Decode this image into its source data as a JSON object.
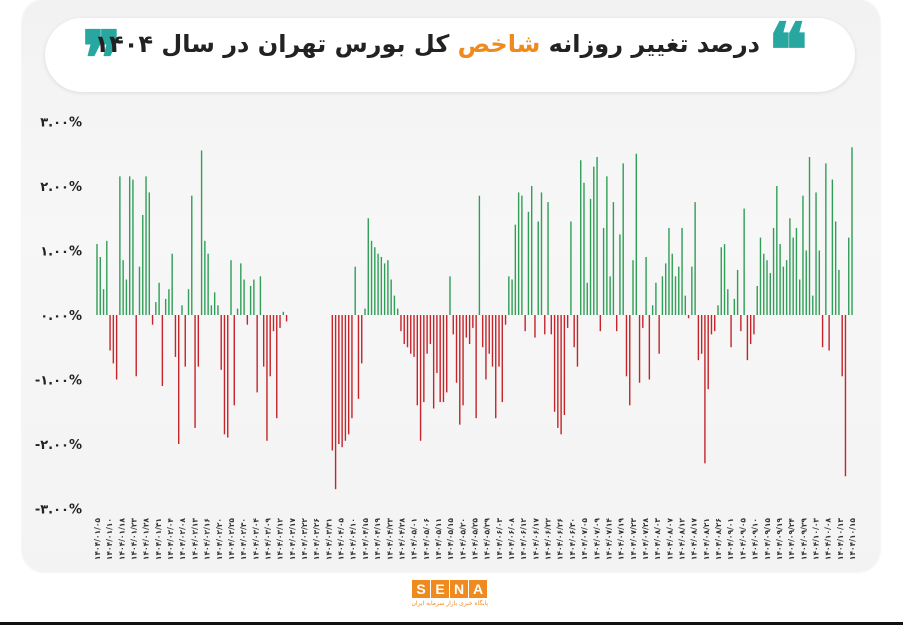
{
  "title": {
    "before": "درصد تغییر روزانه ",
    "highlight": "شاخص",
    "after": " کل بورس تهران در سال ۱۴۰۴"
  },
  "logo": {
    "letters": [
      "S",
      "E",
      "N",
      "A"
    ],
    "subtitle": "پایگاه خبری بازار سرمایه ایران"
  },
  "colors": {
    "positive": "#2f9e56",
    "negative": "#c4242a",
    "accent": "#ef8a1f",
    "quote": "#27a7a0"
  },
  "chart_data": {
    "type": "bar",
    "title": "درصد تغییر روزانه شاخص کل بورس تهران در سال ۱۴۰۴",
    "xlabel": "",
    "ylabel": "",
    "ylim": [
      -3,
      3
    ],
    "y_ticks": [
      3,
      2,
      1,
      0,
      -1,
      -2,
      -3
    ],
    "y_tick_labels": [
      "۳.۰۰%",
      "۲.۰۰%",
      "۱.۰۰%",
      "۰.۰۰%",
      "-۱.۰۰%",
      "-۲.۰۰%",
      "-۳.۰۰%"
    ],
    "grid": false,
    "x_tick_labels": [
      "۱۴۰۴/۰۱/۰۵",
      "۱۴۰۴/۰۱/۱۰",
      "۱۴۰۴/۰۱/۱۸",
      "۱۴۰۴/۰۱/۲۳",
      "۱۴۰۴/۰۱/۲۸",
      "۱۴۰۴/۰۱/۳۱",
      "۱۴۰۴/۰۲/۰۴",
      "۱۴۰۴/۰۲/۰۸",
      "۱۴۰۴/۰۲/۱۳",
      "۱۴۰۴/۰۲/۱۶",
      "۱۴۰۴/۰۲/۲۰",
      "۱۴۰۴/۰۲/۲۵",
      "۱۴۰۴/۰۲/۳۰",
      "۱۴۰۴/۰۳/۰۴",
      "۱۴۰۴/۰۳/۰۹",
      "۱۴۰۴/۰۳/۱۲",
      "۱۴۰۴/۰۳/۱۷",
      "۱۴۰۴/۰۳/۲۲",
      "۱۴۰۴/۰۳/۲۶",
      "۱۴۰۴/۰۳/۳۱",
      "۱۴۰۴/۰۴/۰۵",
      "۱۴۰۴/۰۴/۱۰",
      "۱۴۰۴/۰۴/۱۵",
      "۱۴۰۴/۰۴/۱۹",
      "۱۴۰۴/۰۴/۲۳",
      "۱۴۰۴/۰۴/۲۸",
      "۱۴۰۴/۰۵/۰۱",
      "۱۴۰۴/۰۵/۰۶",
      "۱۴۰۴/۰۵/۱۱",
      "۱۴۰۴/۰۵/۱۵",
      "۱۴۰۴/۰۵/۲۰",
      "۱۴۰۴/۰۵/۲۵",
      "۱۴۰۴/۰۵/۲۹",
      "۱۴۰۴/۰۶/۰۳",
      "۱۴۰۴/۰۶/۰۸",
      "۱۴۰۴/۰۶/۱۲",
      "۱۴۰۴/۰۶/۱۷",
      "۱۴۰۴/۰۶/۲۲",
      "۱۴۰۴/۰۶/۲۶",
      "۱۴۰۴/۰۶/۳۰",
      "۱۴۰۴/۰۷/۰۵",
      "۱۴۰۴/۰۷/۰۹",
      "۱۴۰۴/۰۷/۱۴",
      "۱۴۰۴/۰۷/۱۹",
      "۱۴۰۴/۰۷/۲۳",
      "۱۴۰۴/۰۷/۲۸",
      "۱۴۰۴/۰۸/۰۳",
      "۱۴۰۴/۰۸/۰۷",
      "۱۴۰۴/۰۸/۱۲",
      "۱۴۰۴/۰۸/۱۷",
      "۱۴۰۴/۰۸/۲۱",
      "۱۴۰۴/۰۸/۲۶",
      "۱۴۰۴/۰۹/۰۱",
      "۱۴۰۴/۰۹/۰۵",
      "۱۴۰۴/۰۹/۱۰",
      "۱۴۰۴/۰۹/۱۵",
      "۱۴۰۴/۰۹/۱۹",
      "۱۴۰۴/۰۹/۲۴",
      "۱۴۰۴/۰۹/۲۹",
      "۱۴۰۴/۱۰/۰۳",
      "۱۴۰۴/۱۰/۰۸",
      "۱۴۰۴/۱۰/۱۳",
      "۱۴۰۴/۱۰/۱۵"
    ],
    "values": [
      1.1,
      0.9,
      0.4,
      1.15,
      -0.55,
      -0.75,
      -1.0,
      2.15,
      0.85,
      0.55,
      2.15,
      2.1,
      -0.95,
      0.75,
      1.55,
      2.15,
      1.9,
      -0.15,
      0.2,
      0.5,
      -1.1,
      0.25,
      0.4,
      0.95,
      -0.65,
      -2.0,
      0.15,
      -0.8,
      0.4,
      1.85,
      -1.75,
      -0.8,
      2.55,
      1.15,
      0.95,
      0.15,
      0.35,
      0.15,
      -0.85,
      -1.85,
      -1.9,
      0.85,
      -1.4,
      0.1,
      0.8,
      0.55,
      -0.15,
      0.45,
      0.55,
      -1.2,
      0.6,
      -0.8,
      -1.95,
      -0.95,
      -0.25,
      -1.6,
      -0.2,
      0.05,
      -0.1,
      0.0,
      0.0,
      0.0,
      0.0,
      0.0,
      0.0,
      0.0,
      0.0,
      0.0,
      0.0,
      0.0,
      0.0,
      0.0,
      -2.1,
      -2.7,
      -2.0,
      -2.05,
      -1.95,
      -1.85,
      -1.6,
      0.75,
      -1.3,
      -0.75,
      0.1,
      1.5,
      1.15,
      1.05,
      0.95,
      0.9,
      0.8,
      0.85,
      0.55,
      0.3,
      0.1,
      -0.25,
      -0.45,
      -0.5,
      -0.6,
      -0.65,
      -1.4,
      -1.95,
      -1.35,
      -0.6,
      -0.45,
      -1.45,
      -0.9,
      -1.35,
      -1.35,
      -1.2,
      0.6,
      -0.3,
      -1.05,
      -1.7,
      -1.4,
      -0.35,
      -0.45,
      -0.2,
      -1.6,
      1.85,
      -0.5,
      -1.0,
      -0.6,
      -0.8,
      -1.6,
      -0.8,
      -1.35,
      -0.15,
      0.6,
      0.55,
      1.4,
      1.9,
      1.85,
      -0.25,
      1.6,
      2.0,
      -0.35,
      1.45,
      1.9,
      -0.3,
      1.75,
      -0.3,
      -1.5,
      -1.75,
      -1.85,
      -1.55,
      -0.2,
      1.45,
      -0.5,
      -0.8,
      2.4,
      2.05,
      0.5,
      1.8,
      2.3,
      2.45,
      -0.25,
      1.35,
      2.15,
      0.6,
      1.75,
      -0.25,
      1.25,
      2.35,
      -0.95,
      -1.4,
      0.85,
      2.5,
      -1.05,
      -0.2,
      0.9,
      -1.0,
      0.15,
      0.5,
      -0.6,
      0.6,
      0.8,
      1.35,
      0.95,
      0.6,
      0.75,
      1.35,
      0.3,
      -0.05,
      0.75,
      1.75,
      -0.7,
      -0.6,
      -2.3,
      -1.15,
      -0.3,
      -0.25,
      0.15,
      1.05,
      1.1,
      0.4,
      -0.5,
      0.25,
      0.7,
      -0.25,
      1.65,
      -0.7,
      -0.45,
      -0.3,
      0.45,
      1.2,
      0.95,
      0.85,
      0.65,
      1.35,
      2.0,
      1.1,
      0.75,
      0.85,
      1.5,
      1.2,
      1.35,
      0.55,
      1.85,
      1.0,
      2.45,
      0.3,
      1.9,
      1.0,
      -0.5,
      2.35,
      -0.55,
      2.1,
      1.45,
      0.7,
      -0.95,
      -2.5,
      1.2,
      2.6
    ]
  }
}
